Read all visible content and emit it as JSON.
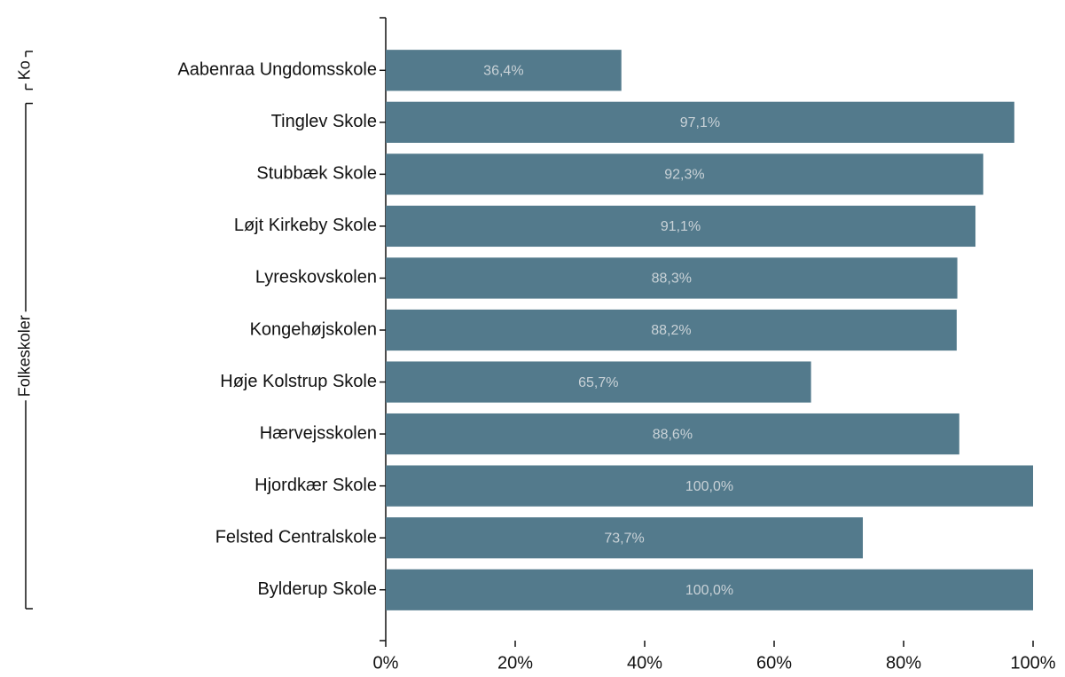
{
  "chart_data": {
    "type": "bar",
    "orientation": "horizontal",
    "categories": [
      "Aabenraa Ungdomsskole",
      "Tinglev Skole",
      "Stubbæk Skole",
      "Løjt Kirkeby Skole",
      "Lyreskovskolen",
      "Kongehøjskolen",
      "Høje Kolstrup Skole",
      "Hærvejsskolen",
      "Hjordkær Skole",
      "Felsted Centralskole",
      "Bylderup Skole"
    ],
    "category_groups": [
      "Ko",
      "Folkeskoler",
      "Folkeskoler",
      "Folkeskoler",
      "Folkeskoler",
      "Folkeskoler",
      "Folkeskoler",
      "Folkeskoler",
      "Folkeskoler",
      "Folkeskoler",
      "Folkeskoler"
    ],
    "values": [
      36.4,
      97.1,
      92.3,
      91.1,
      88.3,
      88.2,
      65.7,
      88.6,
      100.0,
      73.7,
      100.0
    ],
    "value_labels": [
      "36,4%",
      "97,1%",
      "92,3%",
      "91,1%",
      "88,3%",
      "88,2%",
      "65,7%",
      "88,6%",
      "100,0%",
      "73,7%",
      "100,0%"
    ],
    "color": "#537a8c",
    "xlim": [
      0,
      100
    ],
    "xticks": [
      {
        "value": 0,
        "label": "0%"
      },
      {
        "value": 20,
        "label": "20%"
      },
      {
        "value": 40,
        "label": "40%"
      },
      {
        "value": 60,
        "label": "60%"
      },
      {
        "value": 80,
        "label": "80%"
      },
      {
        "value": 100,
        "label": "100%"
      }
    ],
    "grid": false
  }
}
